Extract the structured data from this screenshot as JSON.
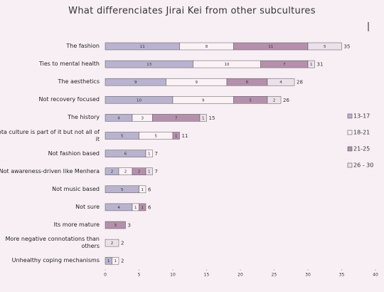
{
  "chart_data": {
    "type": "stacked_bar_horizontal",
    "title": "What differenciates Jirai Kei from other subcultures",
    "categories": [
      "The fashion",
      "Ties to mental health",
      "The aesthetics",
      "Not recovery focused",
      "The history",
      "Vota culture is part of it but not all of it",
      "Not fashion based",
      "Not awareness-driven like Menhera",
      "Not music based",
      "Not sure",
      "Its more mature",
      "More negative connotations than others",
      "Unhealthy coping mechanisms"
    ],
    "series": [
      {
        "name": "13-17",
        "color": "#b9b3cf",
        "values": [
          11,
          13,
          9,
          10,
          4,
          5,
          6,
          2,
          5,
          4,
          0,
          0,
          1
        ]
      },
      {
        "name": "18-21",
        "color": "#fbf2f6",
        "values": [
          8,
          10,
          9,
          9,
          3,
          5,
          1,
          2,
          1,
          1,
          0,
          0,
          1
        ]
      },
      {
        "name": "21-25",
        "color": "#b590ad",
        "values": [
          11,
          7,
          6,
          5,
          7,
          1,
          0,
          2,
          0,
          1,
          3,
          0,
          0
        ]
      },
      {
        "name": "26 - 30",
        "color": "#ebe1ea",
        "values": [
          5,
          1,
          4,
          2,
          1,
          0,
          0,
          1,
          0,
          0,
          0,
          2,
          0
        ]
      }
    ],
    "totals": [
      35,
      31,
      28,
      26,
      15,
      11,
      7,
      7,
      6,
      6,
      3,
      2,
      2
    ],
    "xlim": [
      0,
      40
    ],
    "xticks": [
      0,
      5,
      10,
      15,
      20,
      25,
      30,
      35,
      40
    ],
    "legend": "right"
  }
}
